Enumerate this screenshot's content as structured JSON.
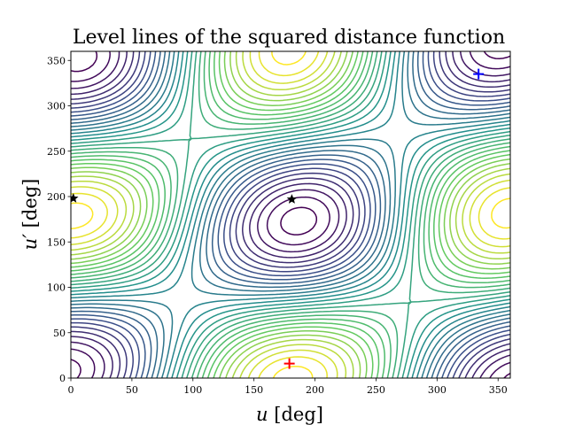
{
  "chart_data": {
    "type": "contour",
    "title": "Level lines of the squared distance function",
    "xlabel": "u [deg]",
    "ylabel": "u′ [deg]",
    "xlim": [
      0,
      360
    ],
    "ylim": [
      0,
      360
    ],
    "x_ticks": [
      0,
      50,
      100,
      150,
      200,
      250,
      300,
      350
    ],
    "y_ticks": [
      0,
      50,
      100,
      150,
      200,
      250,
      300,
      350
    ],
    "colormap": [
      "#440154",
      "#3b528b",
      "#21918c",
      "#5ec962",
      "#fde725"
    ],
    "contour_levels": 30,
    "markers": [
      {
        "name": "red-plus",
        "symbol": "plus",
        "color": "#ff0000",
        "x": 179,
        "y": 16
      },
      {
        "name": "blue-plus",
        "symbol": "plus",
        "color": "#0000ff",
        "x": 334,
        "y": 335
      },
      {
        "name": "black-star-center",
        "symbol": "star",
        "color": "#000000",
        "x": 181,
        "y": 197
      },
      {
        "name": "black-star-left",
        "symbol": "star",
        "color": "#000000",
        "x": 2,
        "y": 198
      }
    ],
    "grid": false,
    "legend": "none"
  }
}
